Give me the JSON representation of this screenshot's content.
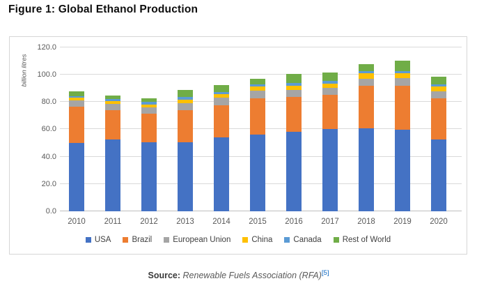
{
  "figure": {
    "title": "Figure 1: Global Ethanol Production"
  },
  "chart_data": {
    "type": "bar",
    "stacked": true,
    "title": "Figure 1: Global Ethanol Production",
    "xlabel": "",
    "ylabel": "billion litres",
    "ylim": [
      0,
      125
    ],
    "grid": true,
    "legend_position": "bottom",
    "yticks": [
      0,
      20,
      40,
      60,
      80,
      100,
      120
    ],
    "ytick_labels": [
      "0.0",
      "20.0",
      "40.0",
      "60.0",
      "80.0",
      "100.0",
      "120.0"
    ],
    "categories": [
      "2010",
      "2011",
      "2012",
      "2013",
      "2014",
      "2015",
      "2016",
      "2017",
      "2018",
      "2019",
      "2020"
    ],
    "series": [
      {
        "name": "USA",
        "color": "#4472C4",
        "values": [
          50.1,
          52.8,
          50.4,
          50.3,
          54.3,
          56.1,
          58.0,
          60.0,
          60.8,
          59.7,
          52.7
        ]
      },
      {
        "name": "Brazil",
        "color": "#ED7D31",
        "values": [
          26.2,
          21.1,
          21.1,
          23.7,
          23.4,
          26.8,
          25.6,
          25.0,
          30.8,
          32.4,
          30.0
        ]
      },
      {
        "name": "European Union",
        "color": "#A5A5A5",
        "values": [
          4.6,
          4.6,
          4.5,
          5.2,
          5.5,
          5.4,
          5.2,
          5.4,
          5.4,
          5.4,
          4.9
        ]
      },
      {
        "name": "China",
        "color": "#FFC000",
        "values": [
          2.1,
          2.1,
          2.1,
          2.6,
          2.4,
          3.0,
          3.2,
          3.1,
          3.8,
          3.4,
          3.5
        ]
      },
      {
        "name": "Canada",
        "color": "#5B9BD5",
        "values": [
          1.4,
          1.8,
          1.8,
          2.0,
          1.9,
          1.7,
          1.7,
          1.8,
          1.8,
          1.9,
          1.6
        ]
      },
      {
        "name": "Rest of World",
        "color": "#70AD47",
        "values": [
          3.6,
          2.4,
          2.8,
          4.8,
          5.1,
          4.2,
          7.0,
          6.5,
          5.3,
          7.3,
          5.7
        ]
      }
    ]
  },
  "source": {
    "label": "Source:",
    "text": "Renewable Fuels Association (RFA)",
    "citation": "[5]"
  },
  "colors": {
    "axis_text": "#595959",
    "grid": "#D9D9D9",
    "axis_line": "#BFBFBF",
    "chart_border": "#D6D6D6",
    "legend_text": "#404040",
    "link": "#0563C1",
    "title_text": "#0D0D0D"
  }
}
